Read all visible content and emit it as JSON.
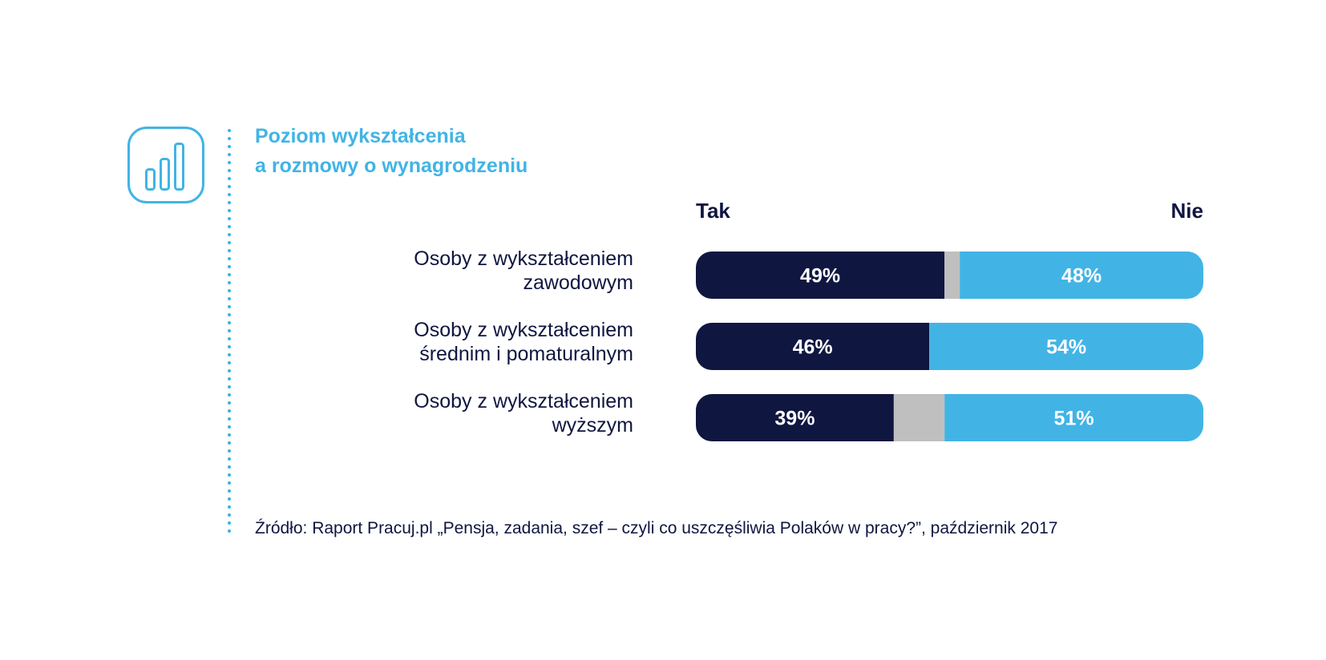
{
  "title_lines": [
    "Poziom wykształcenia",
    "a rozmowy o wynagrodzeniu"
  ],
  "icon": "bar-chart-icon",
  "colors": {
    "accent": "#41b4e5",
    "tak": "#0f1640",
    "nie": "#41b4e5",
    "other": "#bfbfbf",
    "text": "#0f1640"
  },
  "legend": {
    "tak": "Tak",
    "nie": "Nie"
  },
  "rows": [
    {
      "label_lines": [
        "Osoby z wykształceniem",
        "zawodowym"
      ]
    },
    {
      "label_lines": [
        "Osoby z wykształceniem",
        "średnim i pomaturalnym"
      ]
    },
    {
      "label_lines": [
        "Osoby z wykształceniem",
        "wyższym"
      ]
    }
  ],
  "source": "Źródło: Raport Pracuj.pl „Pensja, zadania, szef – czyli co uszczęśliwia Polaków w pracy?”, październik 2017",
  "chart_data": {
    "type": "bar",
    "orientation": "horizontal",
    "stacked": true,
    "title": "Poziom wykształcenia a rozmowy o wynagrodzeniu",
    "categories": [
      "Osoby z wykształceniem zawodowym",
      "Osoby z wykształceniem średnim i pomaturalnym",
      "Osoby z wykształceniem wyższym"
    ],
    "series": [
      {
        "name": "Tak",
        "values": [
          49,
          46,
          39
        ],
        "labels": [
          "49%",
          "46%",
          "39%"
        ]
      },
      {
        "values": [
          3,
          0,
          10
        ]
      },
      {
        "name": "Nie",
        "values": [
          48,
          54,
          51
        ],
        "labels": [
          "48%",
          "54%",
          "51%"
        ]
      }
    ],
    "xlim": [
      0,
      100
    ],
    "unit": "%",
    "legend_placement": "top"
  }
}
